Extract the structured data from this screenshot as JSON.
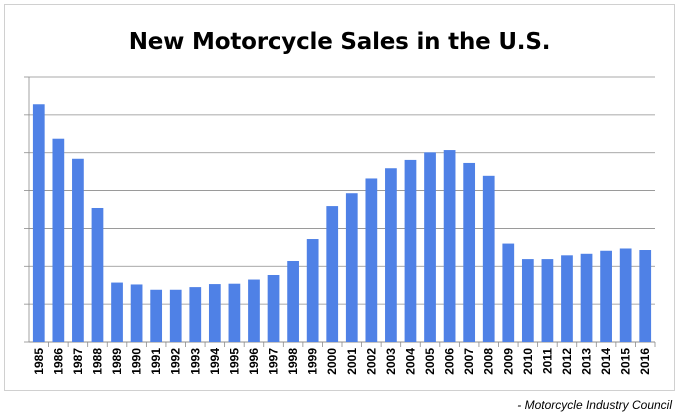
{
  "chart_data": {
    "type": "bar",
    "title": "New Motorcycle Sales in the U.S.",
    "xlabel": "",
    "ylabel": "",
    "ylim": [
      0,
      7
    ],
    "ytick_count": 7,
    "grid": true,
    "bar_color": "#4f81e6",
    "categories": [
      "1985",
      "1986",
      "1987",
      "1988",
      "1989",
      "1990",
      "1991",
      "1992",
      "1993",
      "1994",
      "1995",
      "1996",
      "1997",
      "1998",
      "1999",
      "2000",
      "2001",
      "2002",
      "2003",
      "2004",
      "2005",
      "2006",
      "2007",
      "2008",
      "2009",
      "2010",
      "2011",
      "2012",
      "2013",
      "2014",
      "2015",
      "2016"
    ],
    "values": [
      6.28,
      5.37,
      4.84,
      3.54,
      1.57,
      1.52,
      1.38,
      1.38,
      1.45,
      1.53,
      1.54,
      1.65,
      1.77,
      2.14,
      2.72,
      3.59,
      3.93,
      4.32,
      4.59,
      4.81,
      5.01,
      5.07,
      4.73,
      4.39,
      2.6,
      2.19,
      2.19,
      2.29,
      2.33,
      2.41,
      2.47,
      2.43
    ]
  },
  "source": "- Motorcycle Industry Council"
}
